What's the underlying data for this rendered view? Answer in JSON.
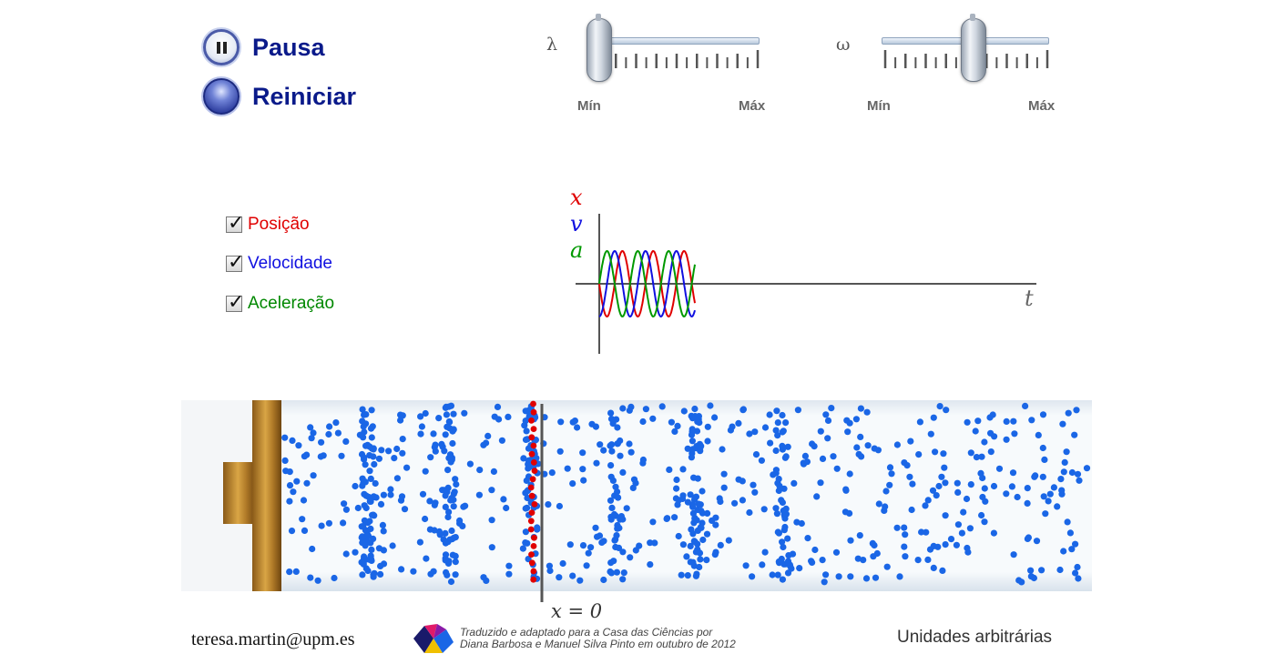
{
  "controls": {
    "pause_label": "Pausa",
    "reset_label": "Reiniciar"
  },
  "sliders": {
    "lambda": {
      "symbol": "λ",
      "min_label": "Mín",
      "max_label": "Máx",
      "value": 0.02
    },
    "omega": {
      "symbol": "ω",
      "min_label": "Mín",
      "max_label": "Máx",
      "value": 0.55
    }
  },
  "checkboxes": [
    {
      "label": "Posição",
      "checked": true,
      "color": "#e00000"
    },
    {
      "label": "Velocidade",
      "checked": true,
      "color": "#1010e0"
    },
    {
      "label": "Aceleração",
      "checked": true,
      "color": "#008800"
    }
  ],
  "graph": {
    "x_label": "x",
    "v_label": "v",
    "a_label": "a",
    "t_label": "t",
    "colors": {
      "x": "#e00000",
      "v": "#1010e0",
      "a": "#009900"
    }
  },
  "tube": {
    "x0_label": "x = 0",
    "particle_color": "#1a66e6",
    "marked_color": "#e00000"
  },
  "footer": {
    "email": "teresa.martin@upm.es",
    "credit_line1": "Traduzido e adaptado para a Casa das Ciências por",
    "credit_line2": "Diana Barbosa e Manuel Silva Pinto em outubro de 2012",
    "units": "Unidades arbitrárias"
  }
}
